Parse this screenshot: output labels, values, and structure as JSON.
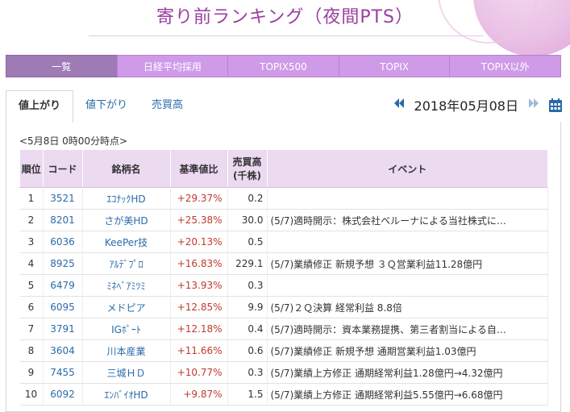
{
  "title": "寄り前ランキング（夜間PTS）",
  "nav_tabs": [
    {
      "label": "一覧",
      "active": true
    },
    {
      "label": "日経平均採用",
      "active": false
    },
    {
      "label": "TOPIX500",
      "active": false
    },
    {
      "label": "TOPIX",
      "active": false
    },
    {
      "label": "TOPIX以外",
      "active": false
    }
  ],
  "sub_tabs": [
    {
      "label": "値上がり",
      "active": true
    },
    {
      "label": "値下がり",
      "active": false
    },
    {
      "label": "売買高",
      "active": false
    }
  ],
  "date_nav": {
    "prev_icon": "double-chevron-left-icon",
    "date": "2018年05月08日",
    "next_icon": "double-chevron-right-icon",
    "calendar_icon": "calendar-icon"
  },
  "timestamp": "<5月8日 0時00分時点>",
  "table": {
    "headers": {
      "rank": "順位",
      "code": "コード",
      "name": "銘柄名",
      "change": "基準値比",
      "volume_line1": "売買高",
      "volume_line2": "(千株)",
      "event": "イベント"
    },
    "rows": [
      {
        "rank": "1",
        "code": "3521",
        "name": "ｴｺﾅｯｸHD",
        "change": "+29.37%",
        "volume": "0.2",
        "event": ""
      },
      {
        "rank": "2",
        "code": "8201",
        "name": "さが美HD",
        "change": "+25.38%",
        "volume": "30.0",
        "event": "(5/7)適時開示：株式会社ベルーナによる当社株式に…"
      },
      {
        "rank": "3",
        "code": "6036",
        "name": "KeePer技",
        "change": "+20.13%",
        "volume": "0.5",
        "event": ""
      },
      {
        "rank": "4",
        "code": "8925",
        "name": "ｱﾙﾃﾞﾌﾟﾛ",
        "change": "+16.83%",
        "volume": "229.1",
        "event": "(5/7)業績修正 新規予想 ３Ｑ営業利益11.28億円"
      },
      {
        "rank": "5",
        "code": "6479",
        "name": "ﾐﾈﾍﾞｱﾐﾂﾐ",
        "change": "+13.93%",
        "volume": "0.3",
        "event": ""
      },
      {
        "rank": "6",
        "code": "6095",
        "name": "メドピア",
        "change": "+12.85%",
        "volume": "9.9",
        "event": "(5/7)２Ｑ決算 経常利益 8.8倍"
      },
      {
        "rank": "7",
        "code": "3791",
        "name": "IGﾎﾟｰﾄ",
        "change": "+12.18%",
        "volume": "0.4",
        "event": "(5/7)適時開示：資本業務提携、第三者割当による自…"
      },
      {
        "rank": "8",
        "code": "3604",
        "name": "川本産業",
        "change": "+11.66%",
        "volume": "0.6",
        "event": "(5/7)業績修正 新規予想 通期営業利益1.03億円"
      },
      {
        "rank": "9",
        "code": "7455",
        "name": "三城ＨＤ",
        "change": "+10.77%",
        "volume": "0.3",
        "event": "(5/7)業績上方修正 通期経常利益1.28億円→4.32億円"
      },
      {
        "rank": "10",
        "code": "6092",
        "name": "ｴﾝﾊﾞｲｵHD",
        "change": "+9.87%",
        "volume": "1.5",
        "event": "(5/7)業績上方修正 通期経常利益5.55億円→6.68億円"
      }
    ]
  }
}
